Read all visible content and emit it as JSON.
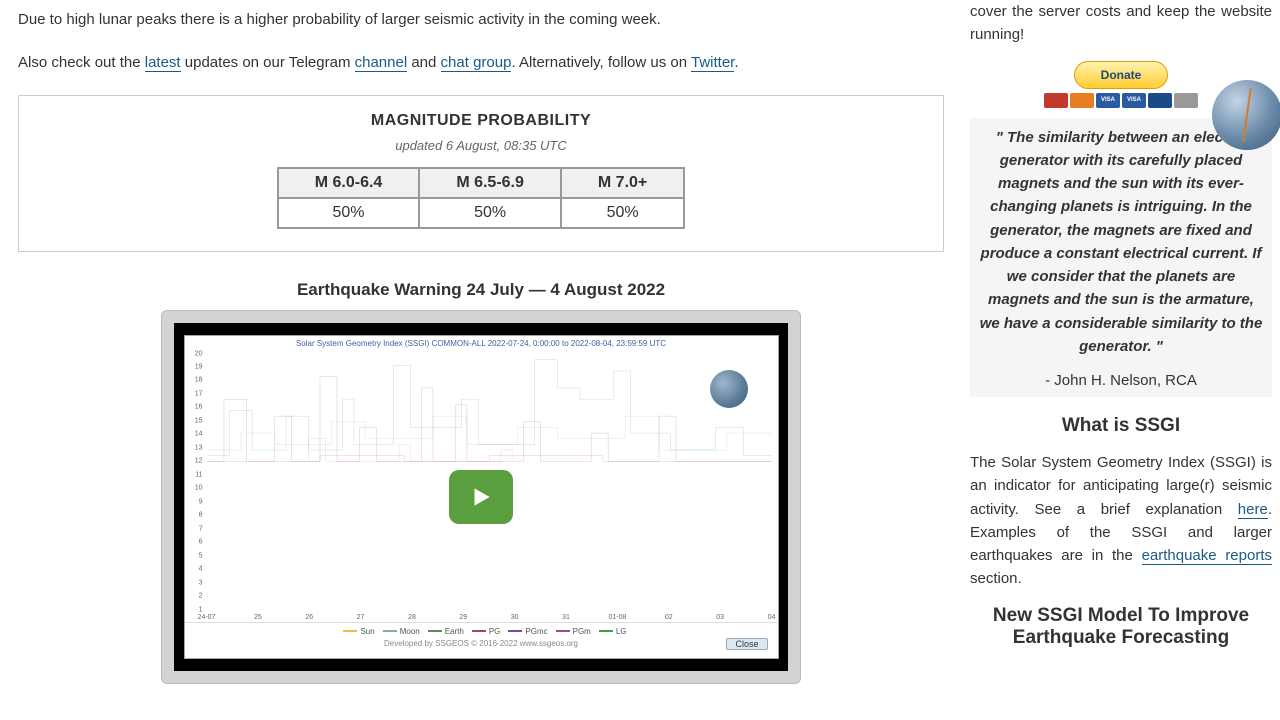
{
  "main": {
    "intro": "Due to high lunar peaks there is a higher probability of larger seismic activity in the coming week.",
    "also_pre": "Also check out the ",
    "latest": "latest",
    "also_mid1": " updates on our Telegram ",
    "channel": "channel",
    "also_mid2": " and ",
    "chat_group": "chat group",
    "also_mid3": ". Alternatively, follow us on ",
    "twitter": "Twitter",
    "also_end": "."
  },
  "prob": {
    "title": "MAGNITUDE PROBABILITY",
    "updated": "updated 6 August, 08:35 UTC",
    "headers": [
      "M 6.0-6.4",
      "M 6.5-6.9",
      "M 7.0+"
    ],
    "values": [
      "50%",
      "50%",
      "50%"
    ]
  },
  "video": {
    "title": "Earthquake Warning 24 July — 4 August 2022",
    "chart_title": "Solar System Geometry Index (SSGI) COMMON-ALL 2022-07-24, 0:00:00 to 2022-08-04, 23:59:59 UTC",
    "legend_items": [
      "Sun",
      "Moon",
      "Earth",
      "PG",
      "PGmc",
      "PGm",
      "LG"
    ],
    "legend_colors": [
      "#e6c24a",
      "#8aa",
      "#5a8a5a",
      "#a04a4a",
      "#7a4aa0",
      "#a04a8a",
      "#4a9a4a"
    ],
    "dev_text": "Developed by SSGEOS © 2016-2022 www.ssgeos.org",
    "close": "Close",
    "y_ticks": [
      20,
      19,
      18,
      17,
      16,
      15,
      14,
      13,
      12,
      11,
      10,
      9,
      8,
      7,
      6,
      5,
      4,
      3,
      2,
      1
    ],
    "x_ticks": [
      "24-07",
      "25",
      "26",
      "27",
      "28",
      "29",
      "30",
      "31",
      "01-08",
      "02",
      "03",
      "04"
    ],
    "series": {
      "green": {
        "color": "#3a9a3a",
        "width": 1,
        "points": [
          [
            0,
            2
          ],
          [
            4,
            2
          ],
          [
            4,
            10
          ],
          [
            8,
            10
          ],
          [
            8,
            3
          ],
          [
            14,
            3
          ],
          [
            14,
            9
          ],
          [
            18,
            9
          ],
          [
            18,
            3
          ],
          [
            24,
            3
          ],
          [
            24,
            12
          ],
          [
            26,
            12
          ],
          [
            26,
            4
          ],
          [
            33,
            4
          ],
          [
            33,
            18
          ],
          [
            36,
            18
          ],
          [
            36,
            7
          ],
          [
            45,
            7
          ],
          [
            45,
            12
          ],
          [
            48,
            12
          ],
          [
            48,
            4
          ],
          [
            58,
            4
          ],
          [
            58,
            19
          ],
          [
            62,
            19
          ],
          [
            62,
            14
          ],
          [
            66,
            14
          ],
          [
            66,
            12
          ],
          [
            72,
            12
          ],
          [
            72,
            17
          ],
          [
            75,
            17
          ],
          [
            75,
            6
          ],
          [
            82,
            6
          ],
          [
            82,
            3
          ],
          [
            90,
            3
          ],
          [
            90,
            7
          ],
          [
            95,
            7
          ],
          [
            95,
            2
          ],
          [
            100,
            2
          ]
        ]
      },
      "red": {
        "color": "#b03030",
        "width": 1,
        "points": [
          [
            0,
            1
          ],
          [
            3,
            1
          ],
          [
            3,
            12
          ],
          [
            7,
            12
          ],
          [
            7,
            1
          ],
          [
            12,
            1
          ],
          [
            12,
            9
          ],
          [
            15,
            9
          ],
          [
            15,
            1
          ],
          [
            20,
            1
          ],
          [
            20,
            16
          ],
          [
            23,
            16
          ],
          [
            23,
            1
          ],
          [
            27,
            1
          ],
          [
            27,
            7
          ],
          [
            30,
            7
          ],
          [
            30,
            1
          ],
          [
            38,
            1
          ],
          [
            38,
            14
          ],
          [
            40,
            14
          ],
          [
            40,
            1
          ],
          [
            44,
            1
          ],
          [
            44,
            11
          ],
          [
            46,
            11
          ],
          [
            46,
            1
          ],
          [
            56,
            1
          ],
          [
            56,
            8
          ],
          [
            59,
            8
          ],
          [
            59,
            1
          ],
          [
            68,
            1
          ],
          [
            68,
            6
          ],
          [
            71,
            6
          ],
          [
            71,
            1
          ],
          [
            80,
            1
          ],
          [
            80,
            9
          ],
          [
            83,
            9
          ],
          [
            83,
            1
          ],
          [
            100,
            1
          ]
        ]
      },
      "gray": {
        "color": "#9a9a9a",
        "width": 1,
        "points": [
          [
            0,
            3
          ],
          [
            6,
            3
          ],
          [
            6,
            6
          ],
          [
            12,
            6
          ],
          [
            12,
            4
          ],
          [
            22,
            4
          ],
          [
            22,
            8
          ],
          [
            28,
            8
          ],
          [
            28,
            5
          ],
          [
            40,
            5
          ],
          [
            40,
            9
          ],
          [
            46,
            9
          ],
          [
            46,
            4
          ],
          [
            55,
            4
          ],
          [
            55,
            7
          ],
          [
            62,
            7
          ],
          [
            62,
            5
          ],
          [
            74,
            5
          ],
          [
            74,
            9
          ],
          [
            80,
            9
          ],
          [
            80,
            3
          ],
          [
            92,
            3
          ],
          [
            92,
            6
          ],
          [
            100,
            6
          ]
        ]
      },
      "purple": {
        "color": "#8a4a9a",
        "width": 1,
        "points": [
          [
            0,
            1
          ],
          [
            20,
            1
          ],
          [
            20,
            2
          ],
          [
            35,
            2
          ],
          [
            35,
            1
          ],
          [
            50,
            1
          ],
          [
            50,
            2
          ],
          [
            70,
            2
          ],
          [
            70,
            1
          ],
          [
            100,
            1
          ]
        ]
      },
      "orange": {
        "color": "#d87a2a",
        "width": 1,
        "points": [
          [
            18,
            1
          ],
          [
            18,
            5
          ],
          [
            21,
            5
          ],
          [
            21,
            1
          ],
          [
            34,
            1
          ],
          [
            34,
            4
          ],
          [
            36,
            4
          ],
          [
            36,
            1
          ],
          [
            52,
            1
          ],
          [
            52,
            3
          ],
          [
            54,
            3
          ],
          [
            54,
            1
          ]
        ]
      }
    }
  },
  "sidebar": {
    "donate_intro": "cover the server costs and keep the website running!",
    "donate_label": "Donate",
    "card_colors": [
      "#c0392b",
      "#e67e22",
      "#2a5aa0",
      "#2a5aa0",
      "#1a4a8a",
      "#999"
    ],
    "card_labels": [
      "",
      "",
      "VISA",
      "VISA",
      "",
      ""
    ],
    "quote": "\" The similarity between an electric generator with its carefully placed magnets and the sun with its ever-changing planets is intriguing. In the generator, the magnets are fixed and produce a constant electrical current. If we consider that the planets are magnets and the sun is the armature, we have a considerable similarity to the generator. \"",
    "quote_attr": "- John H. Nelson, RCA",
    "what_title": "What is SSGI",
    "what_p1a": "The Solar System Geometry Index (SSGI) is an indicator for anticipating large(r) seismic activity. See a brief explanation ",
    "what_here": "here",
    "what_p1b": ". Examples of the SSGI and larger earthquakes are in the ",
    "what_reports": "earthquake reports",
    "what_p1c": " section.",
    "model_title": "New SSGI Model To Improve Earthquake Forecasting"
  }
}
